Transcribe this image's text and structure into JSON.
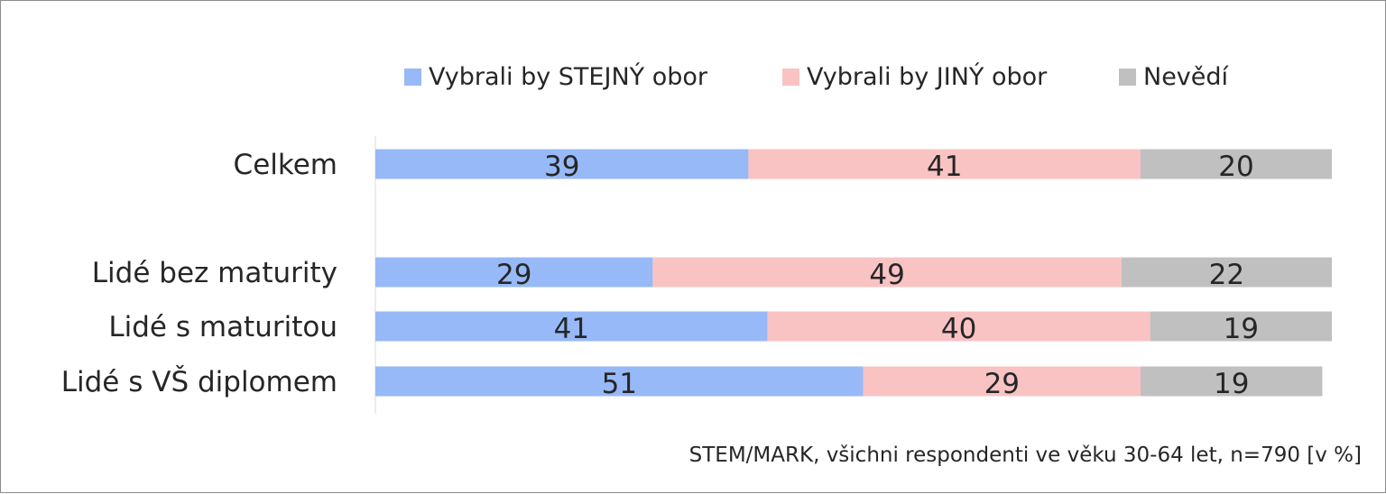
{
  "chart_data": {
    "type": "bar",
    "orientation": "horizontal",
    "stacked": true,
    "categories": [
      "Celkem",
      "Lidé bez maturity",
      "Lidé s maturitou",
      "Lidé s VŠ diplomem"
    ],
    "series": [
      {
        "name": "Vybrali by STEJNÝ obor",
        "color": "#97b9f7",
        "values": [
          39,
          29,
          41,
          51
        ]
      },
      {
        "name": "Vybrali by JINÝ obor",
        "color": "#f9c3c3",
        "values": [
          41,
          49,
          40,
          29
        ]
      },
      {
        "name": "Nevědí",
        "color": "#c0c0c0",
        "values": [
          20,
          22,
          19,
          19
        ]
      }
    ],
    "xlim": [
      0,
      100
    ],
    "grid": false,
    "legend_position": "top",
    "data_labels": true,
    "note": "STEM/MARK, všichni respondenti ve věku 30-64 let, n=790 [v %]"
  }
}
